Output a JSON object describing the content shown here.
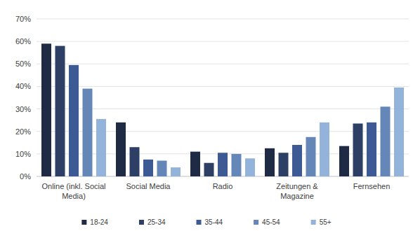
{
  "chart_data": {
    "type": "bar",
    "categories": [
      "Online (inkl. Social Media)",
      "Social Media",
      "Radio",
      "Zeitungen & Magazine",
      "Fernsehen"
    ],
    "series": [
      {
        "name": "18-24",
        "color": "#1f2a44",
        "values": [
          59,
          24,
          11,
          12.5,
          13.5
        ]
      },
      {
        "name": "25-34",
        "color": "#2e3f66",
        "values": [
          58,
          13,
          6,
          10.5,
          23.5
        ]
      },
      {
        "name": "35-44",
        "color": "#3d5a94",
        "values": [
          49.5,
          7.5,
          10.5,
          14,
          24
        ]
      },
      {
        "name": "45-54",
        "color": "#6487b8",
        "values": [
          39,
          7,
          10,
          17.5,
          31
        ]
      },
      {
        "name": "55+",
        "color": "#93b3db",
        "values": [
          25.5,
          4,
          8,
          24,
          39.5
        ]
      }
    ],
    "ylim": [
      0,
      70
    ],
    "yticks": [
      {
        "value": 0,
        "label": "0%"
      },
      {
        "value": 10,
        "label": "10%"
      },
      {
        "value": 20,
        "label": "20%"
      },
      {
        "value": 30,
        "label": "30%"
      },
      {
        "value": 40,
        "label": "40%"
      },
      {
        "value": 50,
        "label": "50%"
      },
      {
        "value": 60,
        "label": "60%"
      },
      {
        "value": 70,
        "label": "70%"
      }
    ],
    "grid": true,
    "legend": "bottom"
  }
}
